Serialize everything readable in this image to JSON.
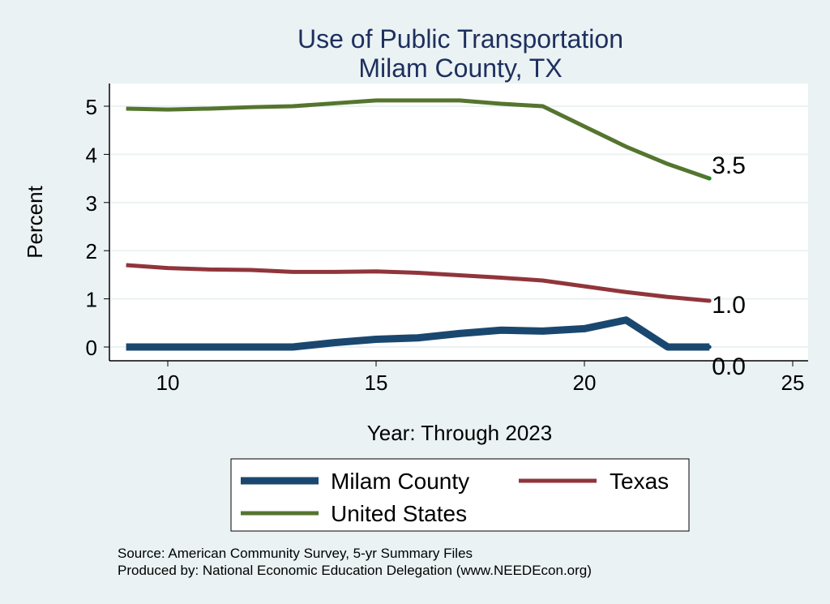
{
  "chart_data": {
    "type": "line",
    "title": "Use of Public Transportation",
    "subtitle": "Milam County, TX",
    "xlabel": "Year: Through 2023",
    "ylabel": "Percent",
    "xlim": [
      9,
      25
    ],
    "ylim": [
      0,
      5.2
    ],
    "xticks": [
      "10",
      "15",
      "20",
      "25"
    ],
    "yticks": [
      "0",
      "1",
      "2",
      "3",
      "4",
      "5"
    ],
    "grid": true,
    "x": [
      9,
      10,
      11,
      12,
      13,
      14,
      15,
      16,
      17,
      18,
      19,
      20,
      21,
      22,
      23
    ],
    "series": [
      {
        "name": "Milam County",
        "color": "#1a476f",
        "values": [
          0,
          0,
          0,
          0,
          0,
          0.09,
          0.16,
          0.19,
          0.28,
          0.35,
          0.33,
          0.38,
          0.56,
          0,
          0
        ],
        "end_label": "0.0"
      },
      {
        "name": "Texas",
        "color": "#90353b",
        "values": [
          1.7,
          1.64,
          1.61,
          1.6,
          1.56,
          1.56,
          1.57,
          1.54,
          1.49,
          1.44,
          1.38,
          1.26,
          1.14,
          1.04,
          0.96
        ],
        "end_label": "1.0"
      },
      {
        "name": "United States",
        "color": "#55752f",
        "values": [
          4.95,
          4.93,
          4.95,
          4.98,
          5.0,
          5.06,
          5.12,
          5.12,
          5.12,
          5.05,
          5.0,
          4.58,
          4.16,
          3.8,
          3.5
        ],
        "end_label": "3.5"
      }
    ],
    "legend": "bottom"
  },
  "notes": {
    "source": "Source: American Community Survey, 5-yr Summary Files",
    "produced": "Produced by: National Economic Education Delegation (www.NEEDEcon.org)"
  }
}
